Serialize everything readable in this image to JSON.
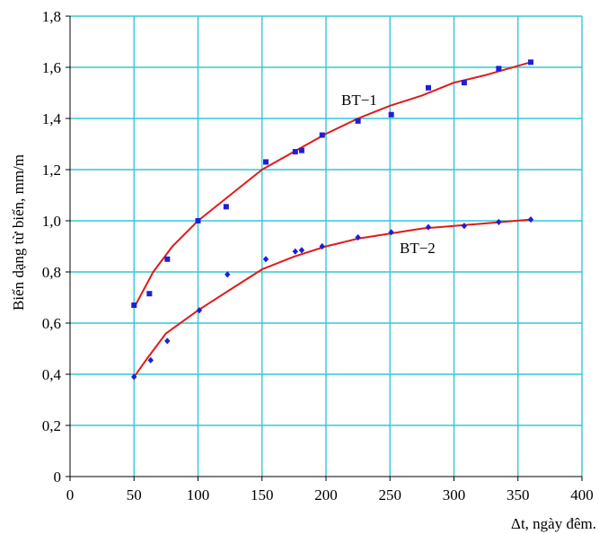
{
  "chart_data": {
    "type": "scatter",
    "xlabel": "Δt, ngày đêm.",
    "ylabel": "Biến dạng từ biến, mm/m",
    "xlim": [
      0,
      400
    ],
    "ylim": [
      0,
      1.8
    ],
    "xticks": [
      0,
      50,
      100,
      150,
      200,
      250,
      300,
      350,
      400
    ],
    "yticks": [
      0,
      0.2,
      0.4,
      0.6,
      0.8,
      1.0,
      1.2,
      1.4,
      1.6,
      1.8
    ],
    "xtick_labels": [
      "0",
      "50",
      "100",
      "150",
      "200",
      "250",
      "300",
      "350",
      "400"
    ],
    "ytick_labels": [
      "0",
      "0,2",
      "0,4",
      "0,6",
      "0,8",
      "1,0",
      "1,2",
      "1,4",
      "1,6",
      "1,8"
    ],
    "grid": true,
    "series": [
      {
        "name": "BT−1",
        "marker": "square",
        "points": [
          [
            50,
            0.67
          ],
          [
            62,
            0.715
          ],
          [
            76,
            0.85
          ],
          [
            100,
            1.0
          ],
          [
            122,
            1.055
          ],
          [
            153,
            1.23
          ],
          [
            176,
            1.27
          ],
          [
            181,
            1.275
          ],
          [
            197,
            1.335
          ],
          [
            225,
            1.39
          ],
          [
            251,
            1.415
          ],
          [
            280,
            1.52
          ],
          [
            308,
            1.54
          ],
          [
            335,
            1.595
          ],
          [
            360,
            1.62
          ]
        ],
        "fit": [
          [
            50,
            0.66
          ],
          [
            65,
            0.8
          ],
          [
            80,
            0.9
          ],
          [
            100,
            1.0
          ],
          [
            125,
            1.1
          ],
          [
            150,
            1.2
          ],
          [
            175,
            1.27
          ],
          [
            200,
            1.34
          ],
          [
            225,
            1.4
          ],
          [
            250,
            1.45
          ],
          [
            275,
            1.49
          ],
          [
            300,
            1.54
          ],
          [
            325,
            1.57
          ],
          [
            360,
            1.62
          ]
        ]
      },
      {
        "name": "BT−2",
        "marker": "diamond",
        "points": [
          [
            50,
            0.39
          ],
          [
            63,
            0.455
          ],
          [
            76,
            0.53
          ],
          [
            101,
            0.65
          ],
          [
            123,
            0.79
          ],
          [
            153,
            0.85
          ],
          [
            176,
            0.88
          ],
          [
            181,
            0.885
          ],
          [
            197,
            0.9
          ],
          [
            225,
            0.935
          ],
          [
            251,
            0.955
          ],
          [
            280,
            0.975
          ],
          [
            308,
            0.98
          ],
          [
            335,
            0.995
          ],
          [
            360,
            1.005
          ]
        ],
        "fit": [
          [
            50,
            0.39
          ],
          [
            60,
            0.46
          ],
          [
            75,
            0.56
          ],
          [
            100,
            0.65
          ],
          [
            125,
            0.73
          ],
          [
            150,
            0.81
          ],
          [
            175,
            0.86
          ],
          [
            200,
            0.9
          ],
          [
            225,
            0.93
          ],
          [
            250,
            0.95
          ],
          [
            275,
            0.97
          ],
          [
            300,
            0.98
          ],
          [
            325,
            0.99
          ],
          [
            360,
            1.005
          ]
        ]
      }
    ],
    "colors": {
      "grid": "#33c7d6",
      "markers": "#1f1fd6",
      "fit_line": "#e01a1a",
      "axis": "#000000"
    }
  }
}
